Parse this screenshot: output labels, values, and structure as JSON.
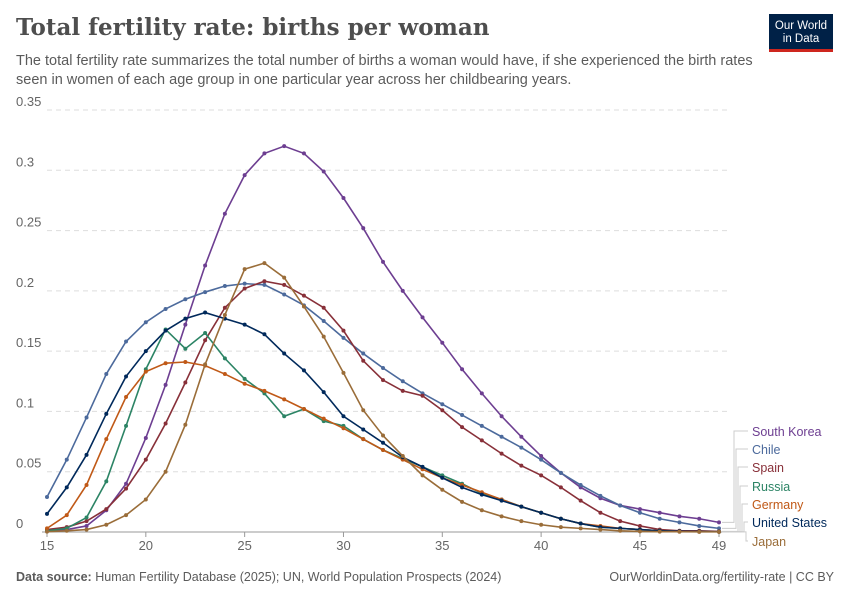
{
  "header": {
    "title": "Total fertility rate: births per woman",
    "subtitle": "The total fertility rate summarizes the total number of births a woman would have, if she experienced the birth rates seen in women of each age group in one particular year across her childbearing years.",
    "logo": "Our World in Data"
  },
  "footer": {
    "source_label": "Data source:",
    "source": "Human Fertility Database (2025); UN, World Population Prospects (2024)",
    "link": "OurWorldinData.org/fertility-rate | CC BY"
  },
  "chart_data": {
    "type": "line",
    "title": "Total fertility rate: births per woman",
    "xlim": [
      15,
      49
    ],
    "ylim": [
      0,
      0.35
    ],
    "xticks": [
      "15",
      "20",
      "25",
      "30",
      "35",
      "40",
      "45",
      "49"
    ],
    "yticks": [
      "0",
      "0.05",
      "0.1",
      "0.15",
      "0.2",
      "0.25",
      "0.3",
      "0.35"
    ],
    "grid": "horizontal dashed",
    "legend": "right (end labels)",
    "x": [
      15,
      16,
      17,
      18,
      19,
      20,
      21,
      22,
      23,
      24,
      25,
      26,
      27,
      28,
      29,
      30,
      31,
      32,
      33,
      34,
      35,
      36,
      37,
      38,
      39,
      40,
      41,
      42,
      43,
      44,
      45,
      46,
      47,
      48,
      49
    ],
    "series": [
      {
        "name": "South Korea",
        "color": "#6d3e91",
        "values": [
          0.001,
          0.002,
          0.005,
          0.018,
          0.04,
          0.078,
          0.122,
          0.172,
          0.221,
          0.264,
          0.296,
          0.314,
          0.32,
          0.314,
          0.299,
          0.277,
          0.252,
          0.224,
          0.2,
          0.178,
          0.157,
          0.135,
          0.115,
          0.096,
          0.079,
          0.063,
          0.049,
          0.037,
          0.028,
          0.022,
          0.019,
          0.016,
          0.013,
          0.011,
          0.008
        ]
      },
      {
        "name": "Chile",
        "color": "#4c6a9c",
        "values": [
          0.029,
          0.06,
          0.095,
          0.131,
          0.158,
          0.174,
          0.185,
          0.193,
          0.199,
          0.204,
          0.206,
          0.205,
          0.197,
          0.188,
          0.175,
          0.161,
          0.148,
          0.136,
          0.125,
          0.115,
          0.106,
          0.097,
          0.088,
          0.079,
          0.07,
          0.06,
          0.049,
          0.039,
          0.03,
          0.022,
          0.016,
          0.011,
          0.008,
          0.005,
          0.003
        ]
      },
      {
        "name": "Spain",
        "color": "#883039",
        "values": [
          0.002,
          0.004,
          0.009,
          0.019,
          0.036,
          0.06,
          0.09,
          0.124,
          0.159,
          0.186,
          0.202,
          0.208,
          0.205,
          0.196,
          0.186,
          0.167,
          0.142,
          0.126,
          0.117,
          0.113,
          0.101,
          0.087,
          0.076,
          0.065,
          0.055,
          0.047,
          0.037,
          0.026,
          0.016,
          0.009,
          0.005,
          0.002,
          0.001,
          0.001,
          0.0005
        ]
      },
      {
        "name": "Russia",
        "color": "#2c8465",
        "values": [
          0.001,
          0.003,
          0.012,
          0.042,
          0.088,
          0.135,
          0.168,
          0.152,
          0.165,
          0.144,
          0.127,
          0.115,
          0.096,
          0.102,
          0.092,
          0.088,
          0.077,
          0.068,
          0.061,
          0.054,
          0.047,
          0.04,
          0.032,
          0.027,
          0.021,
          0.016,
          0.011,
          0.007,
          0.004,
          0.003,
          0.002,
          0.001,
          0.0005,
          0.0003,
          0.0002
        ]
      },
      {
        "name": "Germany",
        "color": "#c05917",
        "values": [
          0.003,
          0.014,
          0.039,
          0.077,
          0.112,
          0.133,
          0.14,
          0.141,
          0.138,
          0.131,
          0.123,
          0.117,
          0.11,
          0.102,
          0.094,
          0.086,
          0.077,
          0.068,
          0.06,
          0.052,
          0.045,
          0.039,
          0.033,
          0.027,
          0.021,
          0.016,
          0.011,
          0.007,
          0.005,
          0.003,
          0.002,
          0.001,
          0.0006,
          0.0003,
          0.0002
        ]
      },
      {
        "name": "United States",
        "color": "#00295b",
        "values": [
          0.015,
          0.037,
          0.064,
          0.098,
          0.129,
          0.15,
          0.167,
          0.177,
          0.182,
          0.177,
          0.172,
          0.164,
          0.148,
          0.134,
          0.116,
          0.096,
          0.085,
          0.074,
          0.062,
          0.054,
          0.045,
          0.037,
          0.031,
          0.026,
          0.021,
          0.016,
          0.011,
          0.007,
          0.004,
          0.003,
          0.002,
          0.001,
          0.0006,
          0.0004,
          0.0002
        ]
      },
      {
        "name": "Japan",
        "color": "#9a6d39",
        "values": [
          0.0003,
          0.001,
          0.002,
          0.006,
          0.014,
          0.027,
          0.05,
          0.089,
          0.139,
          0.18,
          0.218,
          0.223,
          0.211,
          0.187,
          0.162,
          0.132,
          0.101,
          0.08,
          0.063,
          0.047,
          0.035,
          0.025,
          0.018,
          0.013,
          0.009,
          0.006,
          0.004,
          0.003,
          0.002,
          0.001,
          0.0005,
          0.0003,
          0.0002,
          0.0001,
          0.0001
        ]
      }
    ]
  }
}
